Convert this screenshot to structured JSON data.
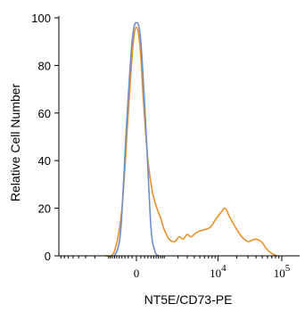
{
  "chart_data": {
    "type": "line",
    "xlabel": "NT5E/CD73-PE",
    "ylabel": "Relative Cell Number",
    "x_scale": "biexponential",
    "xlim": [
      -1000,
      100000
    ],
    "ylim": [
      0,
      100
    ],
    "y_ticks": [
      0,
      20,
      40,
      60,
      80,
      100
    ],
    "x_tick_labels": [
      {
        "value": 0,
        "base": "0",
        "exp": ""
      },
      {
        "value": 10000,
        "base": "10",
        "exp": "4"
      },
      {
        "value": 100000,
        "base": "10",
        "exp": "5"
      }
    ],
    "grid": false,
    "legend": "none",
    "series": [
      {
        "color": "#e8912a",
        "points": [
          {
            "x": -1200,
            "y": 0
          },
          {
            "x": -700,
            "y": 2
          },
          {
            "x": -400,
            "y": 20
          },
          {
            "x": -200,
            "y": 60
          },
          {
            "x": -80,
            "y": 88
          },
          {
            "x": 0,
            "y": 96
          },
          {
            "x": 80,
            "y": 88
          },
          {
            "x": 180,
            "y": 62
          },
          {
            "x": 300,
            "y": 40
          },
          {
            "x": 450,
            "y": 27
          },
          {
            "x": 600,
            "y": 21
          },
          {
            "x": 800,
            "y": 16
          },
          {
            "x": 1000,
            "y": 11
          },
          {
            "x": 1300,
            "y": 7
          },
          {
            "x": 1700,
            "y": 6
          },
          {
            "x": 2100,
            "y": 8
          },
          {
            "x": 2500,
            "y": 7
          },
          {
            "x": 3000,
            "y": 9
          },
          {
            "x": 3500,
            "y": 8
          },
          {
            "x": 4500,
            "y": 10
          },
          {
            "x": 6000,
            "y": 11
          },
          {
            "x": 7500,
            "y": 12
          },
          {
            "x": 9000,
            "y": 15
          },
          {
            "x": 11000,
            "y": 18
          },
          {
            "x": 13000,
            "y": 20
          },
          {
            "x": 15000,
            "y": 17
          },
          {
            "x": 19000,
            "y": 12
          },
          {
            "x": 24000,
            "y": 8
          },
          {
            "x": 30000,
            "y": 6
          },
          {
            "x": 38000,
            "y": 7
          },
          {
            "x": 48000,
            "y": 6
          },
          {
            "x": 58000,
            "y": 3
          },
          {
            "x": 70000,
            "y": 1
          },
          {
            "x": 85000,
            "y": 0
          }
        ]
      },
      {
        "color": "#6f8fc8",
        "points": [
          {
            "x": -700,
            "y": 0
          },
          {
            "x": -450,
            "y": 10
          },
          {
            "x": -250,
            "y": 55
          },
          {
            "x": -100,
            "y": 90
          },
          {
            "x": 0,
            "y": 98
          },
          {
            "x": 100,
            "y": 90
          },
          {
            "x": 250,
            "y": 50
          },
          {
            "x": 400,
            "y": 12
          },
          {
            "x": 550,
            "y": 2
          },
          {
            "x": 700,
            "y": 0
          }
        ]
      }
    ]
  }
}
